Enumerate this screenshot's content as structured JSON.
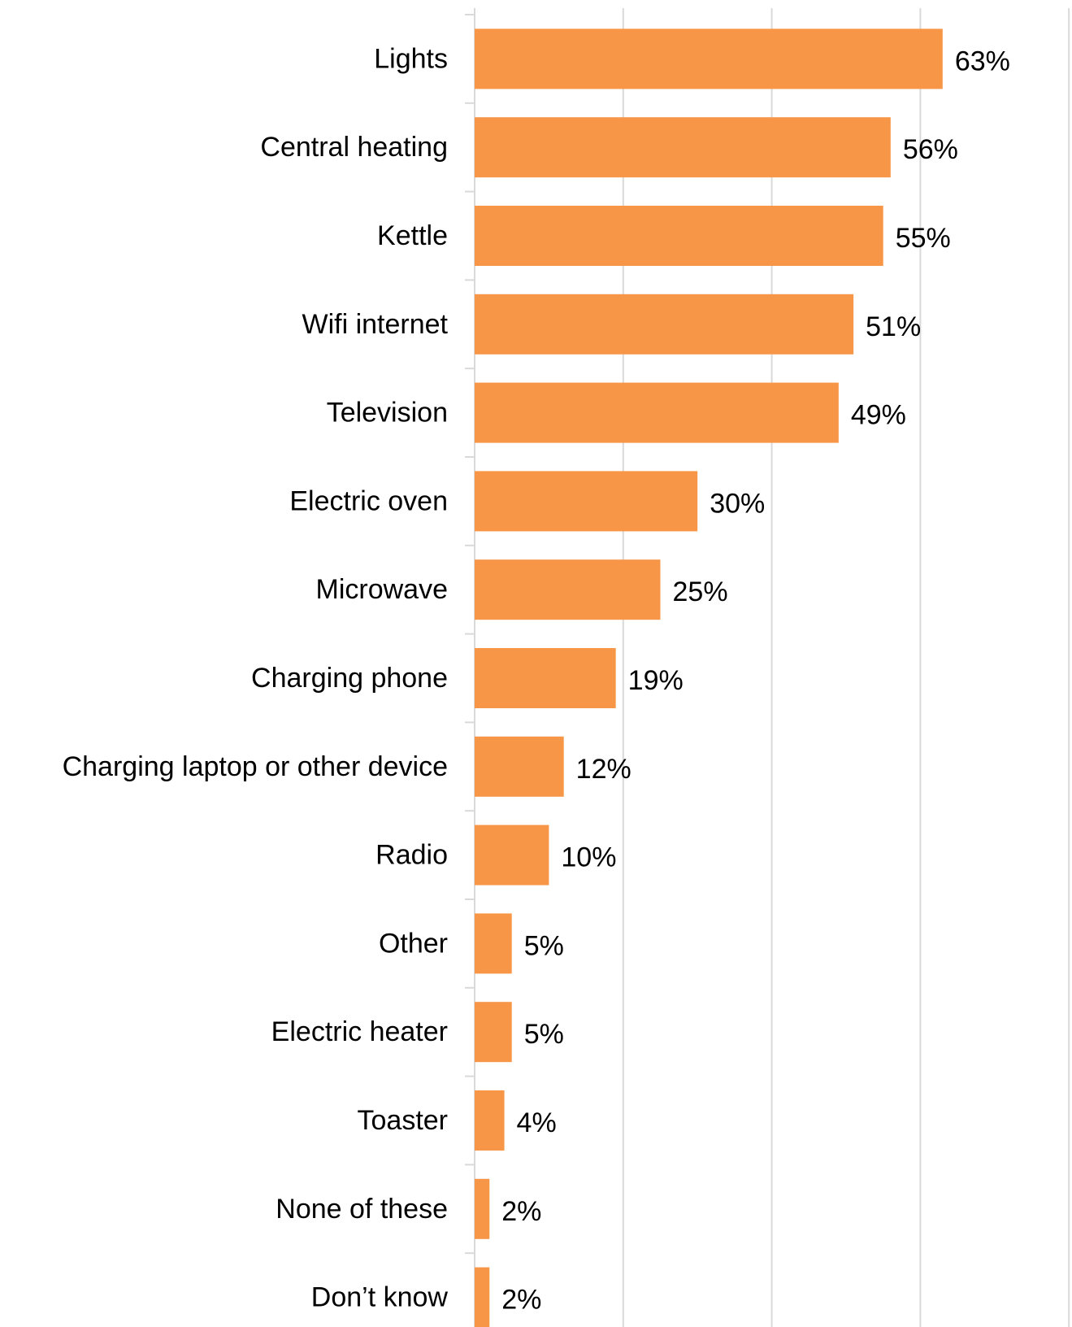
{
  "chart_data": {
    "type": "bar",
    "orientation": "horizontal",
    "categories": [
      "Lights",
      "Central heating",
      "Kettle",
      "Wifi internet",
      "Television",
      "Electric oven",
      "Microwave",
      "Charging phone",
      "Charging laptop or other device",
      "Radio",
      "Other",
      "Electric heater",
      "Toaster",
      "None of these",
      "Don’t know"
    ],
    "values": [
      63,
      56,
      55,
      51,
      49,
      30,
      25,
      19,
      12,
      10,
      5,
      5,
      4,
      2,
      2
    ],
    "value_labels": [
      "63%",
      "56%",
      "55%",
      "51%",
      "49%",
      "30%",
      "25%",
      "19%",
      "12%",
      "10%",
      "5%",
      "5%",
      "4%",
      "2%",
      "2%"
    ],
    "unit": "%",
    "xlim": [
      0,
      80
    ],
    "x_gridlines": [
      20,
      40,
      60,
      80
    ],
    "grid": true,
    "show_x_tick_labels": false,
    "bar_color": "#F79646",
    "grid_color": "#D9D9D9",
    "title": "",
    "xlabel": "",
    "ylabel": ""
  }
}
